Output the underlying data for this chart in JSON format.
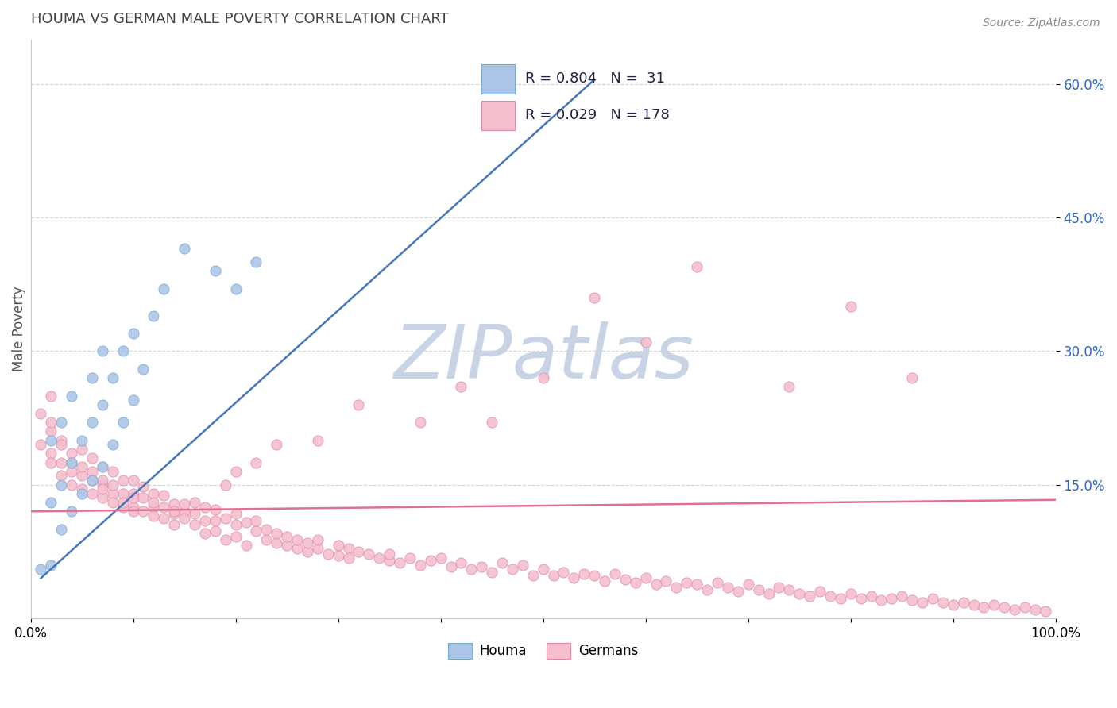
{
  "title": "HOUMA VS GERMAN MALE POVERTY CORRELATION CHART",
  "source_text": "Source: ZipAtlas.com",
  "ylabel": "Male Poverty",
  "xlim": [
    0.0,
    1.0
  ],
  "ylim": [
    0.0,
    0.65
  ],
  "ytick_positions": [
    0.15,
    0.3,
    0.45,
    0.6
  ],
  "ytick_labels": [
    "15.0%",
    "30.0%",
    "45.0%",
    "60.0%"
  ],
  "houma_color": "#adc6e8",
  "houma_edge_color": "#7aaad0",
  "german_color": "#f5bfce",
  "german_edge_color": "#e08aaa",
  "houma_line_color": "#4477bb",
  "german_line_color": "#e07090",
  "houma_R": 0.804,
  "houma_N": 31,
  "german_R": 0.029,
  "german_N": 178,
  "grid_color": "#cccccc",
  "watermark": "ZIPatlas",
  "watermark_color": "#c8d4e5",
  "legend_label_houma": "Houma",
  "legend_label_german": "Germans",
  "houma_line_x0": 0.01,
  "houma_line_y0": 0.045,
  "houma_line_x1": 0.55,
  "houma_line_y1": 0.605,
  "german_line_x0": 0.0,
  "german_line_y0": 0.12,
  "german_line_x1": 1.0,
  "german_line_y1": 0.133,
  "houma_x": [
    0.01,
    0.02,
    0.02,
    0.02,
    0.03,
    0.03,
    0.03,
    0.04,
    0.04,
    0.04,
    0.05,
    0.05,
    0.06,
    0.06,
    0.06,
    0.07,
    0.07,
    0.07,
    0.08,
    0.08,
    0.09,
    0.09,
    0.1,
    0.1,
    0.11,
    0.12,
    0.13,
    0.15,
    0.18,
    0.2,
    0.22
  ],
  "houma_y": [
    0.055,
    0.06,
    0.13,
    0.2,
    0.1,
    0.15,
    0.22,
    0.12,
    0.175,
    0.25,
    0.14,
    0.2,
    0.155,
    0.22,
    0.27,
    0.17,
    0.24,
    0.3,
    0.195,
    0.27,
    0.22,
    0.3,
    0.245,
    0.32,
    0.28,
    0.34,
    0.37,
    0.415,
    0.39,
    0.37,
    0.4
  ],
  "german_x": [
    0.01,
    0.01,
    0.02,
    0.02,
    0.02,
    0.02,
    0.02,
    0.03,
    0.03,
    0.03,
    0.03,
    0.04,
    0.04,
    0.04,
    0.04,
    0.05,
    0.05,
    0.05,
    0.05,
    0.06,
    0.06,
    0.06,
    0.06,
    0.07,
    0.07,
    0.07,
    0.07,
    0.07,
    0.08,
    0.08,
    0.08,
    0.08,
    0.09,
    0.09,
    0.09,
    0.09,
    0.1,
    0.1,
    0.1,
    0.1,
    0.1,
    0.11,
    0.11,
    0.11,
    0.12,
    0.12,
    0.12,
    0.12,
    0.13,
    0.13,
    0.13,
    0.14,
    0.14,
    0.14,
    0.15,
    0.15,
    0.15,
    0.16,
    0.16,
    0.17,
    0.17,
    0.17,
    0.18,
    0.18,
    0.18,
    0.19,
    0.19,
    0.2,
    0.2,
    0.2,
    0.21,
    0.21,
    0.22,
    0.22,
    0.23,
    0.23,
    0.24,
    0.24,
    0.25,
    0.25,
    0.26,
    0.26,
    0.27,
    0.27,
    0.28,
    0.28,
    0.29,
    0.3,
    0.3,
    0.31,
    0.31,
    0.32,
    0.33,
    0.34,
    0.35,
    0.35,
    0.36,
    0.37,
    0.38,
    0.39,
    0.4,
    0.41,
    0.42,
    0.43,
    0.44,
    0.45,
    0.46,
    0.47,
    0.48,
    0.49,
    0.5,
    0.51,
    0.52,
    0.53,
    0.54,
    0.55,
    0.56,
    0.57,
    0.58,
    0.59,
    0.6,
    0.61,
    0.62,
    0.63,
    0.64,
    0.65,
    0.66,
    0.67,
    0.68,
    0.69,
    0.7,
    0.71,
    0.72,
    0.73,
    0.74,
    0.75,
    0.76,
    0.77,
    0.78,
    0.79,
    0.8,
    0.81,
    0.82,
    0.83,
    0.84,
    0.85,
    0.86,
    0.87,
    0.88,
    0.89,
    0.9,
    0.91,
    0.92,
    0.93,
    0.94,
    0.95,
    0.96,
    0.97,
    0.98,
    0.99,
    0.74,
    0.8,
    0.86,
    0.55,
    0.6,
    0.65,
    0.45,
    0.5,
    0.38,
    0.42,
    0.28,
    0.32,
    0.22,
    0.24,
    0.19,
    0.2,
    0.16,
    0.14
  ],
  "german_y": [
    0.23,
    0.195,
    0.21,
    0.185,
    0.175,
    0.22,
    0.25,
    0.2,
    0.175,
    0.16,
    0.195,
    0.185,
    0.165,
    0.15,
    0.175,
    0.16,
    0.145,
    0.17,
    0.19,
    0.155,
    0.14,
    0.165,
    0.18,
    0.15,
    0.135,
    0.155,
    0.17,
    0.145,
    0.14,
    0.13,
    0.15,
    0.165,
    0.125,
    0.14,
    0.155,
    0.13,
    0.125,
    0.14,
    0.155,
    0.12,
    0.135,
    0.12,
    0.135,
    0.148,
    0.125,
    0.14,
    0.115,
    0.13,
    0.125,
    0.138,
    0.112,
    0.128,
    0.118,
    0.105,
    0.12,
    0.112,
    0.128,
    0.105,
    0.118,
    0.11,
    0.125,
    0.095,
    0.11,
    0.122,
    0.098,
    0.112,
    0.088,
    0.105,
    0.118,
    0.092,
    0.108,
    0.082,
    0.098,
    0.11,
    0.088,
    0.1,
    0.085,
    0.095,
    0.082,
    0.092,
    0.078,
    0.088,
    0.075,
    0.085,
    0.078,
    0.088,
    0.072,
    0.082,
    0.07,
    0.078,
    0.068,
    0.075,
    0.072,
    0.068,
    0.065,
    0.072,
    0.062,
    0.068,
    0.06,
    0.065,
    0.068,
    0.058,
    0.062,
    0.055,
    0.058,
    0.052,
    0.062,
    0.055,
    0.06,
    0.048,
    0.055,
    0.048,
    0.052,
    0.045,
    0.05,
    0.048,
    0.042,
    0.05,
    0.044,
    0.04,
    0.045,
    0.038,
    0.042,
    0.035,
    0.04,
    0.038,
    0.032,
    0.04,
    0.035,
    0.03,
    0.038,
    0.032,
    0.028,
    0.035,
    0.032,
    0.028,
    0.025,
    0.03,
    0.025,
    0.022,
    0.028,
    0.022,
    0.025,
    0.02,
    0.022,
    0.025,
    0.02,
    0.018,
    0.022,
    0.018,
    0.015,
    0.018,
    0.015,
    0.012,
    0.015,
    0.012,
    0.01,
    0.012,
    0.01,
    0.008,
    0.26,
    0.35,
    0.27,
    0.36,
    0.31,
    0.395,
    0.22,
    0.27,
    0.22,
    0.26,
    0.2,
    0.24,
    0.175,
    0.195,
    0.15,
    0.165,
    0.13,
    0.12
  ]
}
